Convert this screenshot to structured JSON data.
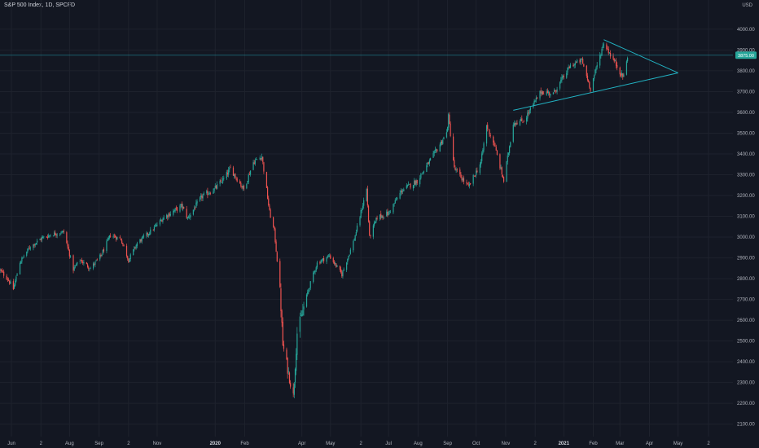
{
  "header": {
    "title": "S&P 500 Index, 1D, SPCFD",
    "currency": "USD"
  },
  "colors": {
    "background": "#131722",
    "grid": "#1e222d",
    "up": "#26a69a",
    "down": "#ef5350",
    "trendline": "#22b3c3",
    "price_label_bg": "#26a69a",
    "axis_text": "#b2b5be"
  },
  "chart_data": {
    "type": "candlestick",
    "title": "S&P 500 Index, 1D, SPCFD",
    "ylabel": "USD",
    "ylim": [
      2040,
      4125
    ],
    "y_ticks": [
      2100,
      2200,
      2300,
      2400,
      2500,
      2600,
      2700,
      2800,
      2900,
      3000,
      3100,
      3200,
      3300,
      3400,
      3500,
      3600,
      3700,
      3800,
      3900,
      4000
    ],
    "y_tick_labels": [
      "2100.00",
      "2200.00",
      "2300.00",
      "2400.00",
      "2500.00",
      "2600.00",
      "2700.00",
      "2800.00",
      "2900.00",
      "3000.00",
      "3100.00",
      "3200.00",
      "3300.00",
      "3400.00",
      "3500.00",
      "3600.00",
      "3700.00",
      "3800.00",
      "3900.00",
      "4000.00"
    ],
    "x_ticks": [
      {
        "label": "Jun",
        "date": "2019-06-01",
        "bold": false
      },
      {
        "label": "2",
        "date": "2019-07-02",
        "bold": false
      },
      {
        "label": "Aug",
        "date": "2019-08-01",
        "bold": false
      },
      {
        "label": "Sep",
        "date": "2019-09-01",
        "bold": false
      },
      {
        "label": "2",
        "date": "2019-10-02",
        "bold": false
      },
      {
        "label": "Nov",
        "date": "2019-11-01",
        "bold": false
      },
      {
        "label": "2020",
        "date": "2020-01-01",
        "bold": true
      },
      {
        "label": "Feb",
        "date": "2020-02-01",
        "bold": false
      },
      {
        "label": "Apr",
        "date": "2020-04-01",
        "bold": false
      },
      {
        "label": "May",
        "date": "2020-05-01",
        "bold": false
      },
      {
        "label": "2",
        "date": "2020-06-02",
        "bold": false
      },
      {
        "label": "Jul",
        "date": "2020-07-01",
        "bold": false
      },
      {
        "label": "Aug",
        "date": "2020-08-01",
        "bold": false
      },
      {
        "label": "Sep",
        "date": "2020-09-01",
        "bold": false
      },
      {
        "label": "Oct",
        "date": "2020-10-01",
        "bold": false
      },
      {
        "label": "Nov",
        "date": "2020-11-01",
        "bold": false
      },
      {
        "label": "2",
        "date": "2020-12-02",
        "bold": false
      },
      {
        "label": "2021",
        "date": "2021-01-01",
        "bold": true
      },
      {
        "label": "Feb",
        "date": "2021-02-01",
        "bold": false
      },
      {
        "label": "Mar",
        "date": "2021-03-01",
        "bold": false
      },
      {
        "label": "Apr",
        "date": "2021-04-01",
        "bold": false
      },
      {
        "label": "May",
        "date": "2021-05-01",
        "bold": false
      },
      {
        "label": "2",
        "date": "2021-06-02",
        "bold": false
      }
    ],
    "close_path": [
      [
        "2019-05-20",
        2840
      ],
      [
        "2019-05-28",
        2800
      ],
      [
        "2019-06-03",
        2750
      ],
      [
        "2019-06-10",
        2880
      ],
      [
        "2019-06-20",
        2950
      ],
      [
        "2019-07-03",
        2995
      ],
      [
        "2019-07-15",
        3015
      ],
      [
        "2019-07-26",
        3025
      ],
      [
        "2019-08-05",
        2845
      ],
      [
        "2019-08-12",
        2890
      ],
      [
        "2019-08-23",
        2850
      ],
      [
        "2019-09-03",
        2910
      ],
      [
        "2019-09-13",
        3010
      ],
      [
        "2019-09-24",
        2990
      ],
      [
        "2019-10-02",
        2890
      ],
      [
        "2019-10-11",
        2970
      ],
      [
        "2019-10-28",
        3040
      ],
      [
        "2019-11-08",
        3095
      ],
      [
        "2019-11-27",
        3150
      ],
      [
        "2019-12-03",
        3090
      ],
      [
        "2019-12-18",
        3195
      ],
      [
        "2019-12-31",
        3230
      ],
      [
        "2020-01-10",
        3280
      ],
      [
        "2020-01-17",
        3330
      ],
      [
        "2020-01-31",
        3230
      ],
      [
        "2020-02-10",
        3360
      ],
      [
        "2020-02-19",
        3390
      ],
      [
        "2020-02-24",
        3225
      ],
      [
        "2020-02-27",
        3120
      ],
      [
        "2020-03-03",
        3030
      ],
      [
        "2020-03-09",
        2750
      ],
      [
        "2020-03-12",
        2480
      ],
      [
        "2020-03-16",
        2390
      ],
      [
        "2020-03-23",
        2235
      ],
      [
        "2020-03-27",
        2540
      ],
      [
        "2020-04-08",
        2750
      ],
      [
        "2020-04-17",
        2875
      ],
      [
        "2020-04-30",
        2910
      ],
      [
        "2020-05-13",
        2820
      ],
      [
        "2020-05-26",
        2990
      ],
      [
        "2020-06-08",
        3230
      ],
      [
        "2020-06-11",
        3000
      ],
      [
        "2020-06-19",
        3095
      ],
      [
        "2020-07-01",
        3115
      ],
      [
        "2020-07-15",
        3225
      ],
      [
        "2020-07-31",
        3270
      ],
      [
        "2020-08-14",
        3370
      ],
      [
        "2020-08-31",
        3500
      ],
      [
        "2020-09-02",
        3580
      ],
      [
        "2020-09-08",
        3330
      ],
      [
        "2020-09-23",
        3240
      ],
      [
        "2020-10-06",
        3360
      ],
      [
        "2020-10-12",
        3535
      ],
      [
        "2020-10-20",
        3445
      ],
      [
        "2020-10-30",
        3270
      ],
      [
        "2020-11-09",
        3550
      ],
      [
        "2020-11-20",
        3560
      ],
      [
        "2020-12-08",
        3700
      ],
      [
        "2020-12-21",
        3690
      ],
      [
        "2021-01-08",
        3825
      ],
      [
        "2021-01-20",
        3850
      ],
      [
        "2021-01-29",
        3715
      ],
      [
        "2021-02-12",
        3935
      ],
      [
        "2021-02-25",
        3830
      ],
      [
        "2021-03-04",
        3770
      ],
      [
        "2021-03-10",
        3875
      ]
    ],
    "candles": [],
    "last_price": 3875,
    "last_price_label": "3875.00",
    "trendlines": [
      {
        "name": "upper",
        "points": [
          [
            "2021-02-12",
            3950
          ],
          [
            "2021-05-01",
            3790
          ]
        ]
      },
      {
        "name": "lower",
        "points": [
          [
            "2020-11-09",
            3610
          ],
          [
            "2021-05-01",
            3790
          ]
        ]
      }
    ],
    "grid": true
  }
}
